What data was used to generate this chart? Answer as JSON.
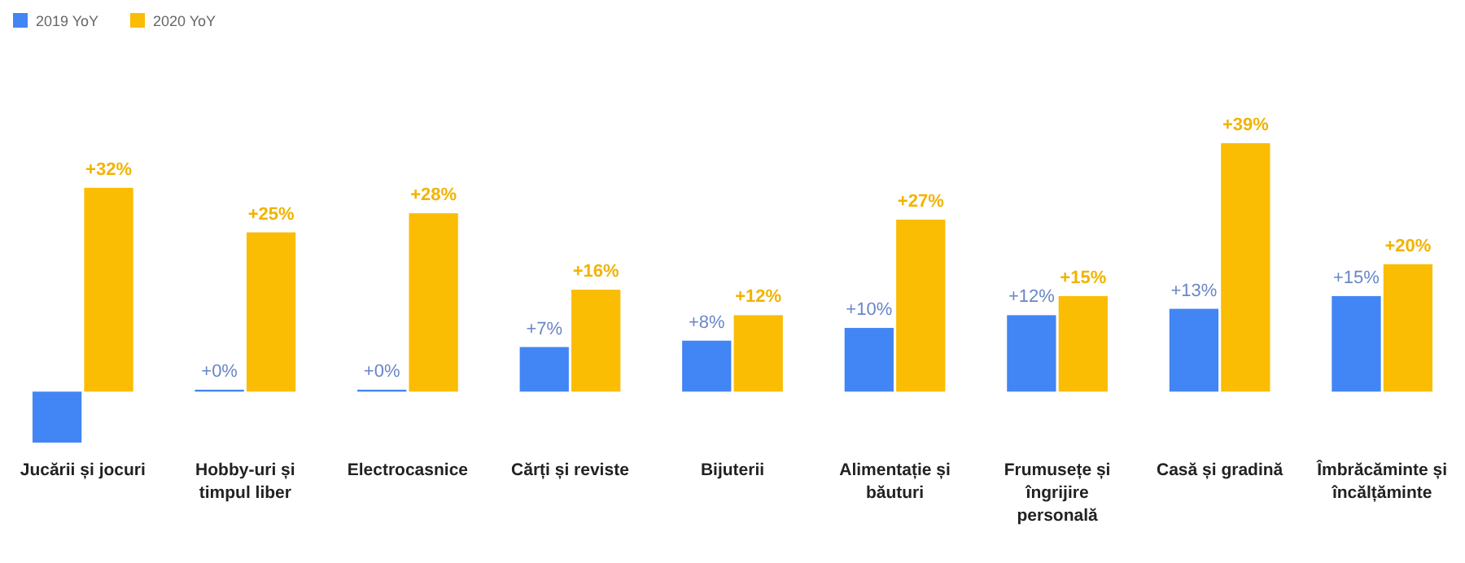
{
  "chart_data": {
    "type": "bar",
    "categories": [
      "Jucării și jocuri",
      "Hobby-uri și timpul liber",
      "Electrocasnice",
      "Cărți și reviste",
      "Bijuterii",
      "Alimentație și băuturi",
      "Frumusețe și îngrijire personală",
      "Casă și gradină",
      "Îmbrăcăminte și încălțăminte"
    ],
    "series": [
      {
        "name": "2019 YoY",
        "color": "#4285f4",
        "values": [
          -8,
          0.3,
          0.3,
          7,
          8,
          10,
          12,
          13,
          15
        ],
        "value_labels": [
          null,
          "+0%",
          "+0%",
          "+7%",
          "+8%",
          "+10%",
          "+12%",
          "+13%",
          "+15%"
        ]
      },
      {
        "name": "2020 YoY",
        "color": "#fbbc04",
        "values": [
          32,
          25,
          28,
          16,
          12,
          27,
          15,
          39,
          20
        ],
        "value_labels": [
          "+32%",
          "+25%",
          "+28%",
          "+16%",
          "+12%",
          "+27%",
          "+15%",
          "+39%",
          "+20%"
        ]
      }
    ],
    "legend": "top left"
  }
}
